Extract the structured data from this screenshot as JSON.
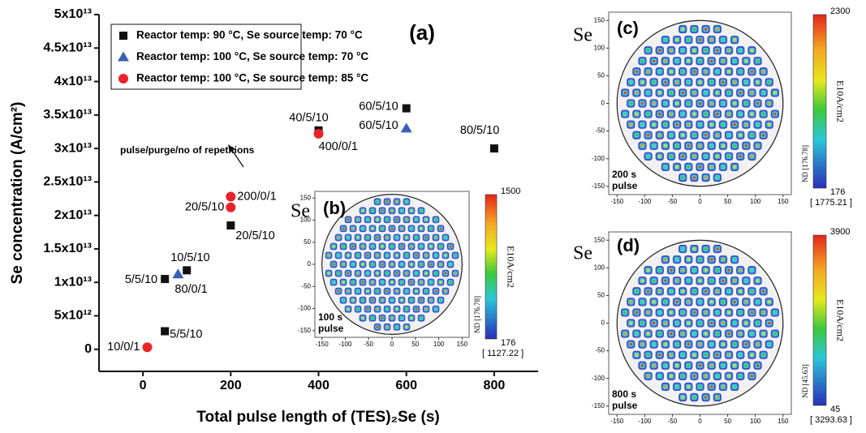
{
  "chart_data": {
    "type": "scatter",
    "title": "(a)",
    "x_label": "Total pulse length of (TES)₂Se (s)",
    "y_label": "Se concentration (A/cm²)",
    "annotation": "pulse/purge/no of repetitions",
    "xlim": [
      -100,
      900
    ],
    "xticks": [
      0,
      200,
      400,
      600,
      800
    ],
    "ylim": [
      -3300000000000.0,
      50000000000000.0
    ],
    "yticks": [
      0,
      {
        "value": 5000000000000.0,
        "label": "5x10¹²"
      },
      {
        "value": 10000000000000.0,
        "label": "1x10¹³"
      },
      {
        "value": 15000000000000.0,
        "label": "1.5x10¹³"
      },
      {
        "value": 20000000000000.0,
        "label": "2x10¹³"
      },
      {
        "value": 25000000000000.0,
        "label": "2.5x10¹³"
      },
      {
        "value": 30000000000000.0,
        "label": "3x10¹³"
      },
      {
        "value": 35000000000000.0,
        "label": "3.5x10¹³"
      },
      {
        "value": 40000000000000.0,
        "label": "4x10¹³"
      },
      {
        "value": 45000000000000.0,
        "label": "4.5x10¹³"
      },
      {
        "value": 50000000000000.0,
        "label": "5x10¹³"
      }
    ],
    "legend": "upper left",
    "series": [
      {
        "name": "Reactor temp: 90 °C, Se source temp: 70 °C",
        "color": "#111111",
        "marker": "square",
        "x": [
          50,
          100,
          50,
          200,
          400,
          600,
          800
        ],
        "values": [
          10500000000000.0,
          11800000000000.0,
          2700000000000.0,
          18500000000000.0,
          32700000000000.0,
          36000000000000.0,
          30000000000000.0
        ],
        "labels": [
          "5/5/10",
          "10/5/10",
          "5/5/10",
          "20/5/10",
          "40/5/10",
          "60/5/10",
          "80/5/10"
        ]
      },
      {
        "name": "Reactor temp: 100 °C, Se source temp: 70 °C",
        "color": "#3a5fb8",
        "marker": "triangle",
        "x": [
          80,
          600
        ],
        "values": [
          11200000000000.0,
          33000000000000.0
        ],
        "labels": [
          "80/0/1",
          "60/5/10"
        ]
      },
      {
        "name": "Reactor temp: 100 °C, Se source temp: 85 °C",
        "color": "#e8232a",
        "marker": "circle",
        "x": [
          10,
          200,
          200,
          400
        ],
        "values": [
          300000000000.0,
          22800000000000.0,
          21200000000000.0,
          32200000000000.0
        ],
        "labels": [
          "10/0/1",
          "200/0/1",
          "20/5/10",
          "400/0/1"
        ]
      }
    ]
  },
  "insets": [
    {
      "label": "(b)",
      "side_text": "Se",
      "pulse_text": [
        "100 s",
        "pulse"
      ],
      "colorbar_max": 1500,
      "colorbar_min": 176,
      "colorbar_title": "E10A/cm2",
      "nd_text": "ND [176.78]",
      "bracket_text": "[ 1127.22 ]",
      "xlim": [
        -165,
        165
      ],
      "ylim": [
        -165,
        165
      ],
      "xticks": [
        -150,
        -100,
        -50,
        0,
        50,
        100,
        150
      ],
      "yticks": [
        -150,
        -100,
        -50,
        0,
        50,
        100,
        150
      ]
    },
    {
      "label": "(c)",
      "side_text": "Se",
      "pulse_text": [
        "200 s",
        "pulse"
      ],
      "colorbar_max": 2300,
      "colorbar_min": 176,
      "colorbar_title": "E10A/cm2",
      "nd_text": "ND [176.78]",
      "bracket_text": "[ 1775.21 ]",
      "xlim": [
        -165,
        165
      ],
      "ylim": [
        -165,
        165
      ],
      "xticks": [
        -150,
        -100,
        -50,
        0,
        50,
        100,
        150
      ],
      "yticks": [
        -150,
        -100,
        -50,
        0,
        50,
        100,
        150
      ]
    },
    {
      "label": "(d)",
      "side_text": "Se",
      "pulse_text": [
        "800 s",
        "pulse"
      ],
      "colorbar_max": 3900,
      "colorbar_min": 45,
      "colorbar_title": "E10A/cm2",
      "nd_text": "ND [45.63]",
      "bracket_text": "[ 3293.63 ]",
      "xlim": [
        -165,
        165
      ],
      "ylim": [
        -165,
        165
      ],
      "xticks": [
        -150,
        -100,
        -50,
        0,
        50,
        100,
        150
      ],
      "yticks": [
        -150,
        -100,
        -50,
        0,
        50,
        100,
        150
      ]
    }
  ]
}
